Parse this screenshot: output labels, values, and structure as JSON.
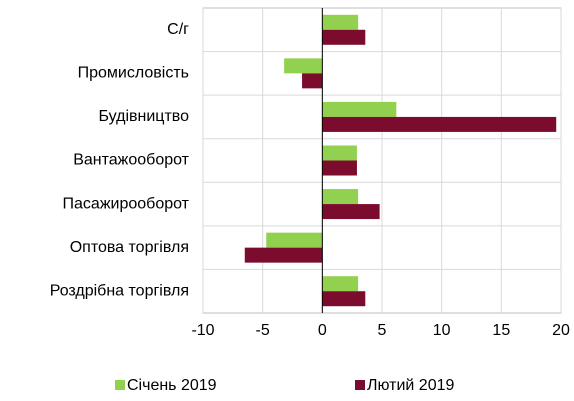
{
  "chart_data": {
    "type": "barh",
    "categories": [
      "С/г",
      "Промисловість",
      "Будівництво",
      "Вантажооборот",
      "Пасажирооборот",
      "Оптова торгівля",
      "Роздрібна торгівля"
    ],
    "series": [
      {
        "name": "Січень 2019",
        "color": "#92d050",
        "values": [
          3.0,
          -3.2,
          6.2,
          2.9,
          3.0,
          -4.7,
          3.0
        ]
      },
      {
        "name": "Лютий 2019",
        "color": "#7b0c2e",
        "values": [
          3.6,
          -1.7,
          19.6,
          2.9,
          4.8,
          -6.5,
          3.6
        ]
      }
    ],
    "xlim": [
      -10,
      20
    ],
    "xticks": [
      -10,
      -5,
      0,
      5,
      10,
      15,
      20
    ],
    "grid": true
  }
}
